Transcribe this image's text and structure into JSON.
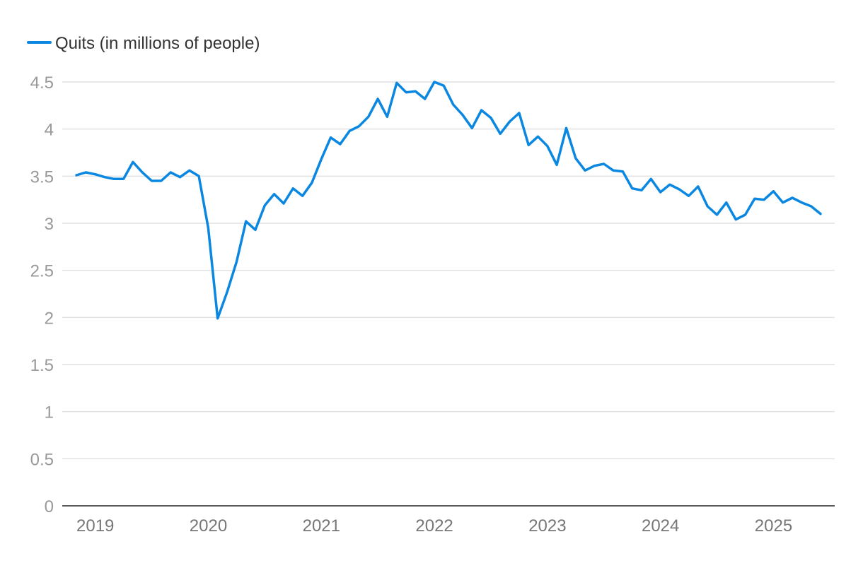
{
  "chart_data": {
    "type": "line",
    "title": "",
    "xlabel": "",
    "ylabel": "",
    "legend": {
      "placement": "top-left"
    },
    "grid": true,
    "ylim": [
      0,
      4.5
    ],
    "yticks": [
      0,
      0.5,
      1,
      1.5,
      2,
      2.5,
      3,
      3.5,
      4,
      4.5
    ],
    "ytick_labels": [
      "0",
      "0.5",
      "1",
      "1.5",
      "2",
      "2.5",
      "3",
      "3.5",
      "4",
      "4.5"
    ],
    "xticks": [
      "2019",
      "2020",
      "2021",
      "2022",
      "2023",
      "2024",
      "2025"
    ],
    "x_start": "2019-01",
    "x_end": "2025-08",
    "series": [
      {
        "name": "Quits (in millions of people)",
        "color": "#0a87e0",
        "x": [
          "2019-01",
          "2019-02",
          "2019-03",
          "2019-04",
          "2019-05",
          "2019-06",
          "2019-07",
          "2019-08",
          "2019-09",
          "2019-10",
          "2019-11",
          "2019-12",
          "2020-01",
          "2020-02",
          "2020-03",
          "2020-04",
          "2020-05",
          "2020-06",
          "2020-07",
          "2020-08",
          "2020-09",
          "2020-10",
          "2020-11",
          "2020-12",
          "2021-01",
          "2021-02",
          "2021-03",
          "2021-04",
          "2021-05",
          "2021-06",
          "2021-07",
          "2021-08",
          "2021-09",
          "2021-10",
          "2021-11",
          "2021-12",
          "2022-01",
          "2022-02",
          "2022-03",
          "2022-04",
          "2022-05",
          "2022-06",
          "2022-07",
          "2022-08",
          "2022-09",
          "2022-10",
          "2022-11",
          "2022-12",
          "2023-01",
          "2023-02",
          "2023-03",
          "2023-04",
          "2023-05",
          "2023-06",
          "2023-07",
          "2023-08",
          "2023-09",
          "2023-10",
          "2023-11",
          "2023-12",
          "2024-01",
          "2024-02",
          "2024-03",
          "2024-04",
          "2024-05",
          "2024-06",
          "2024-07",
          "2024-08",
          "2024-09",
          "2024-10",
          "2024-11",
          "2024-12",
          "2025-01",
          "2025-02",
          "2025-03",
          "2025-04",
          "2025-05",
          "2025-06",
          "2025-07",
          "2025-08"
        ],
        "values": [
          3.51,
          3.54,
          3.52,
          3.49,
          3.47,
          3.47,
          3.65,
          3.54,
          3.45,
          3.45,
          3.54,
          3.49,
          3.56,
          3.5,
          2.95,
          1.99,
          2.27,
          2.59,
          3.02,
          2.93,
          3.19,
          3.31,
          3.21,
          3.37,
          3.29,
          3.43,
          3.68,
          3.91,
          3.84,
          3.98,
          4.03,
          4.13,
          4.32,
          4.13,
          4.49,
          4.39,
          4.4,
          4.32,
          4.5,
          4.46,
          4.26,
          4.15,
          4.01,
          4.2,
          4.12,
          3.95,
          4.08,
          4.17,
          3.83,
          3.92,
          3.82,
          3.62,
          4.01,
          3.69,
          3.56,
          3.61,
          3.63,
          3.56,
          3.55,
          3.37,
          3.35,
          3.47,
          3.33,
          3.41,
          3.36,
          3.29,
          3.39,
          3.18,
          3.09,
          3.22,
          3.04,
          3.09,
          3.26,
          3.25,
          3.34,
          3.22,
          3.27,
          3.22,
          3.18,
          3.1
        ]
      }
    ]
  }
}
